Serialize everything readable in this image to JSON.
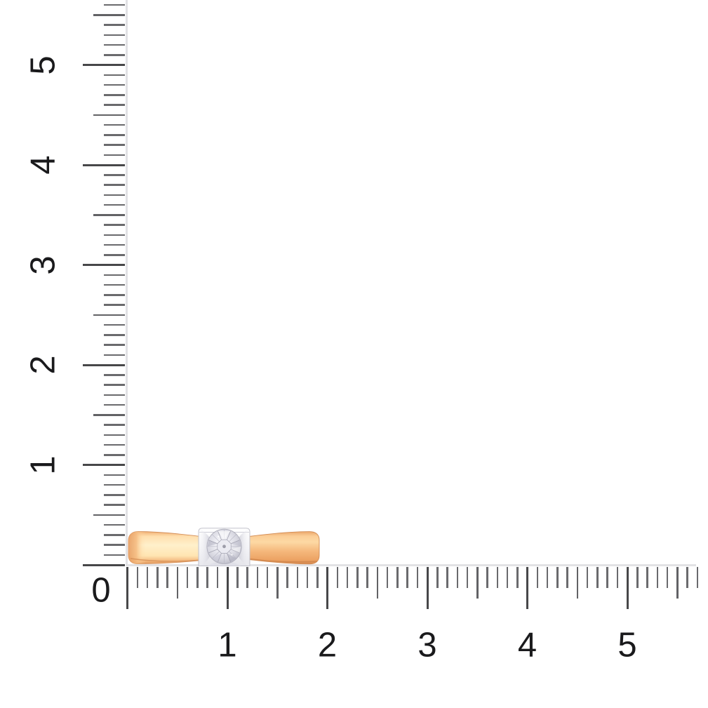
{
  "product": {
    "name": "solitaire-diamond-ring-side-view-on-ruler",
    "colors": {
      "band_rose_gold": "#f6ba7e",
      "band_highlight": "#fff0cb",
      "band_edge": "#d58b51",
      "setting_white_gold": "#f4f4f7",
      "setting_shadow": "#c9c9d4",
      "diamond_light": "#ececf3",
      "diamond_mid": "#c4c4d0",
      "diamond_dark": "#8e8e9c"
    }
  },
  "rulers": {
    "minor_per_unit": 10,
    "vertical": {
      "tick_count": 57,
      "labels": [
        {
          "text": "5",
          "unit": 5
        },
        {
          "text": "4",
          "unit": 4
        },
        {
          "text": "3",
          "unit": 3
        },
        {
          "text": "2",
          "unit": 2
        },
        {
          "text": "1",
          "unit": 1
        }
      ]
    },
    "horizontal": {
      "tick_count": 58,
      "labels": [
        {
          "text": "0",
          "unit": 0
        },
        {
          "text": "1",
          "unit": 1
        },
        {
          "text": "2",
          "unit": 2
        },
        {
          "text": "3",
          "unit": 3
        },
        {
          "text": "4",
          "unit": 4
        },
        {
          "text": "5",
          "unit": 5
        }
      ]
    },
    "colors": {
      "tick": "#6a6a6d",
      "medium_tick": "#626265",
      "major_tick": "#474749",
      "spine": "#e2e2e5",
      "label": "#1a1a1c"
    }
  }
}
